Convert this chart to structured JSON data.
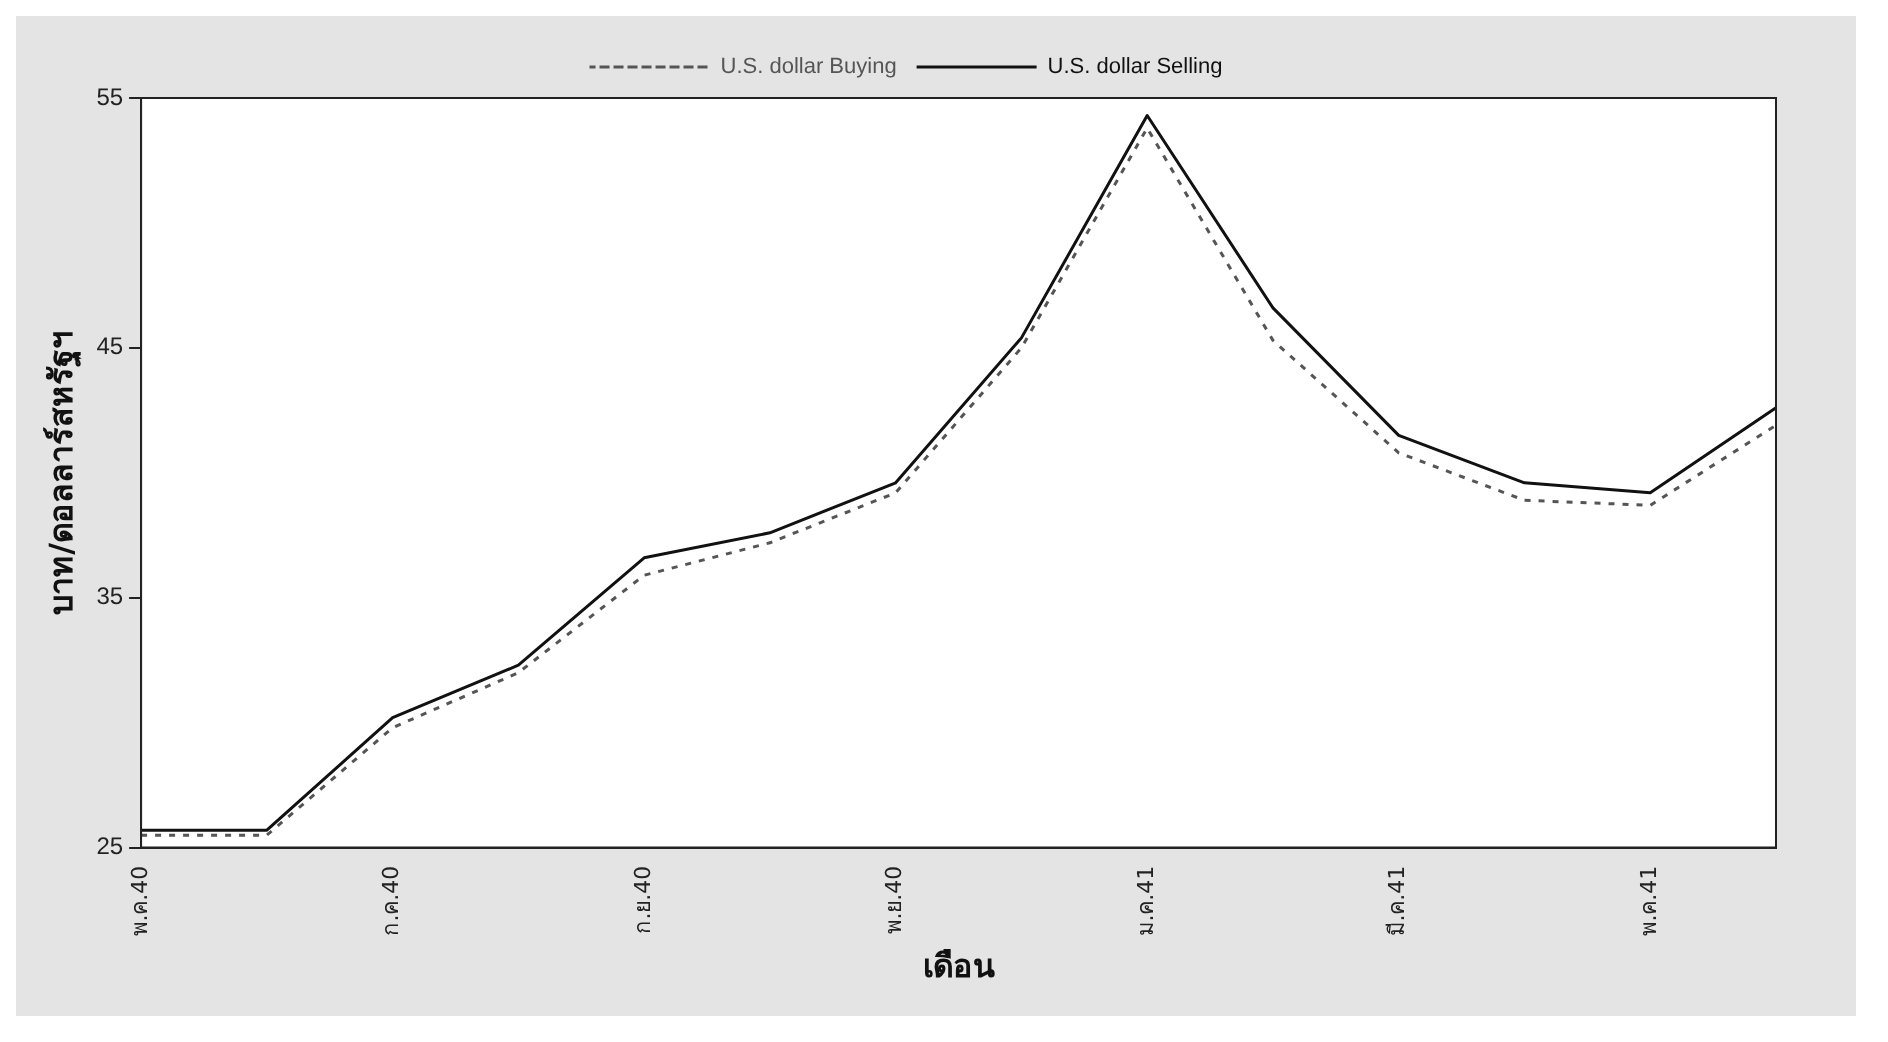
{
  "chart_data": {
    "type": "line",
    "xlabel": "เดือน",
    "ylabel": "บาท/ดอลลาร์สหรัฐฯ",
    "categories": [
      "พ.ค.40",
      null,
      "ก.ค.40",
      null,
      "ก.ย.40",
      null,
      "พ.ย.40",
      null,
      "ม.ค.41",
      null,
      "มี.ค.41",
      null,
      "พ.ค.41",
      null
    ],
    "series": [
      {
        "name": "U.S. dollar Buying",
        "color": "#555555",
        "line_style": "dotted",
        "values": [
          25.5,
          25.5,
          29.8,
          32.0,
          35.9,
          37.2,
          39.2,
          45.0,
          53.8,
          45.3,
          40.8,
          38.9,
          38.7,
          41.9
        ]
      },
      {
        "name": "U.S. dollar Selling",
        "color": "#111111",
        "line_style": "solid",
        "values": [
          25.7,
          25.7,
          30.2,
          32.3,
          36.6,
          37.6,
          39.6,
          45.4,
          54.3,
          46.6,
          41.5,
          39.6,
          39.2,
          42.6
        ]
      }
    ],
    "ylim": [
      25,
      55
    ],
    "yticks": [
      25,
      35,
      45,
      55
    ],
    "grid": false,
    "legend": "top",
    "marker": "none"
  }
}
